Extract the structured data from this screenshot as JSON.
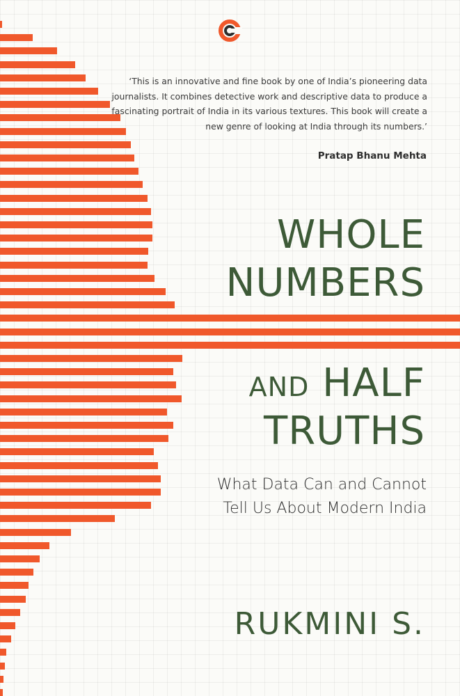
{
  "bars": {
    "color": "#f0582b",
    "lengths": [
      3,
      47,
      82,
      108,
      123,
      141,
      158,
      173,
      181,
      188,
      193,
      199,
      205,
      212,
      217,
      219,
      219,
      213,
      212,
      222,
      238,
      251,
      661,
      661,
      661,
      262,
      249,
      253,
      261,
      240,
      249,
      242,
      221,
      227,
      231,
      231,
      217,
      165,
      102,
      71,
      57,
      48,
      41,
      37,
      29,
      22,
      16,
      9,
      7,
      5,
      4
    ]
  },
  "logo": {
    "name": "publisher-logo",
    "color": "#f0582b",
    "accent": "#2d2d2d"
  },
  "quote": {
    "text": "‘This is an innovative and fine book by one of India’s pioneering data journalists. It combines detective work and descriptive data to produce a fascinating portrait of India in its various textures. This book will create a new genre of looking at India through its numbers.’",
    "attribution": "Pratap Bhanu Mehta"
  },
  "title": {
    "line1": "WHOLE",
    "line2": "NUMBERS",
    "line3_small": "AND",
    "line3_large": "HALF",
    "line4": "TRUTHS"
  },
  "subtitle": {
    "line1": "What Data Can and Cannot",
    "line2": "Tell Us About Modern India"
  },
  "author": "RUKMINI S.",
  "colors": {
    "title_green": "#3d5a37",
    "bar_orange": "#f0582b",
    "background": "#fbfbf8"
  }
}
